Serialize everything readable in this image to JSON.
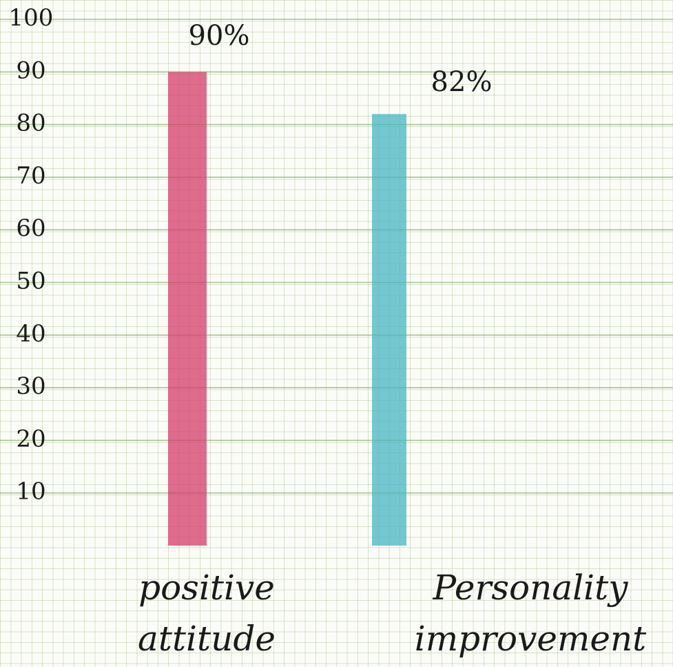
{
  "chart_data": {
    "type": "bar",
    "categories": [
      "positive attitude",
      "Personality improvement"
    ],
    "values": [
      90,
      82
    ],
    "value_labels": [
      "90%",
      "82%"
    ],
    "colors": [
      "#d63c6b",
      "#48b6c2"
    ],
    "ylim": [
      0,
      100
    ],
    "yticks": [
      10,
      20,
      30,
      40,
      50,
      60,
      70,
      80,
      90,
      100
    ],
    "grid": true
  }
}
